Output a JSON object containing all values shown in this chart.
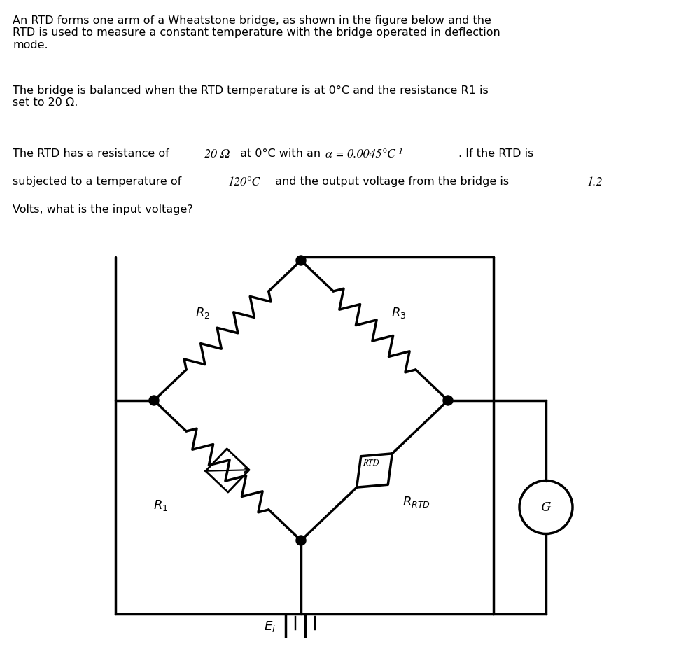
{
  "title_text": "An RTD forms one arm of a Wheatstone bridge, as shown in the figure below and the\nRTD is used to measure a constant temperature with the bridge operated in deflection\nmode.",
  "para2": "The bridge is balanced when the RTD temperature is at 0°C and the resistance R1 is\nset to 20 Ω.",
  "para3_part1": "The RTD has a resistance of 20 Ω at 0°C with an ",
  "para3_math": "α = 0.0045°C⁻¹",
  "para3_part2": ". If the RTD is\nsubjected to a temperature of ",
  "para3_temp": "120°C",
  "para3_part3": " and the output voltage from the bridge is 1.2\nVolts, what is the input voltage?",
  "bg_color": "#ffffff",
  "text_color": "#000000",
  "line_color": "#000000",
  "line_width": 2.5
}
